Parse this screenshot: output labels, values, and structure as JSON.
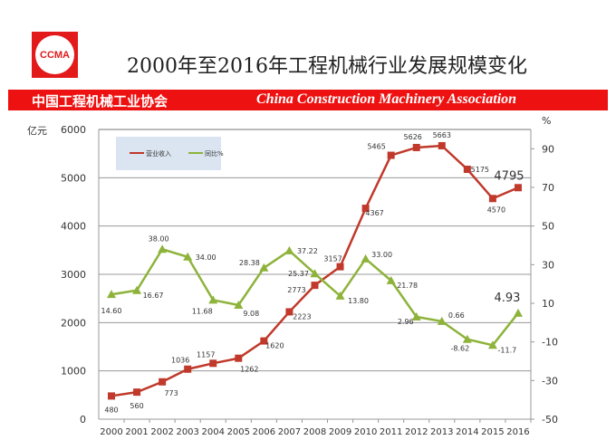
{
  "logo": {
    "text": "CCMA"
  },
  "title": "2000年至2016年工程机械行业发展规模变化",
  "banner": {
    "cn": "中国工程机械工业协会",
    "en": "China Construction Machinery Association"
  },
  "chart_data": {
    "type": "line",
    "title": "2000年至2016年工程机械行业发展规模变化",
    "ylabel": "亿元",
    "y2label": "%",
    "categories": [
      "2000",
      "2001",
      "2002",
      "2003",
      "2004",
      "2005",
      "2006",
      "2007",
      "2008",
      "2009",
      "2010",
      "2011",
      "2012",
      "2013",
      "2014",
      "2015",
      "2016"
    ],
    "ylim": [
      0,
      6000
    ],
    "yticks": [
      0,
      1000,
      2000,
      3000,
      4000,
      5000,
      6000
    ],
    "y2lim": [
      -50,
      100
    ],
    "y2ticks": [
      -50,
      -30,
      -10,
      10,
      30,
      50,
      70,
      90
    ],
    "grid": true,
    "legend": "top-left",
    "series": [
      {
        "name": "营业收入",
        "axis": "left",
        "color": "#c0392b",
        "marker": "square",
        "values": [
          480,
          560,
          773,
          1036,
          1157,
          1262,
          1620,
          2223,
          2773,
          3157,
          4367,
          5465,
          5626,
          5663,
          5175,
          4570,
          4795
        ],
        "labels": [
          "480",
          "560",
          "773",
          "1036",
          "1157",
          "1262",
          "1620",
          "2223",
          "2773",
          "3157",
          "4367",
          "5465",
          "5626",
          "5663",
          "5175",
          "4570",
          "4795"
        ]
      },
      {
        "name": "同比%",
        "axis": "right",
        "color": "#8db33a",
        "marker": "triangle",
        "values": [
          14.6,
          16.67,
          38.0,
          34.0,
          11.68,
          9.08,
          28.38,
          37.22,
          25.37,
          13.8,
          33.0,
          21.78,
          2.96,
          0.66,
          -8.62,
          -11.7,
          4.93
        ],
        "labels": [
          "14.60",
          "16.67",
          "38.00",
          "34.00",
          "11.68",
          "9.08",
          "28.38",
          "37.22",
          "25.37",
          "13.80",
          "33.00",
          "21.78",
          "2.96",
          "0.66",
          "-8.62",
          "-11.7",
          "4.93"
        ]
      }
    ]
  }
}
